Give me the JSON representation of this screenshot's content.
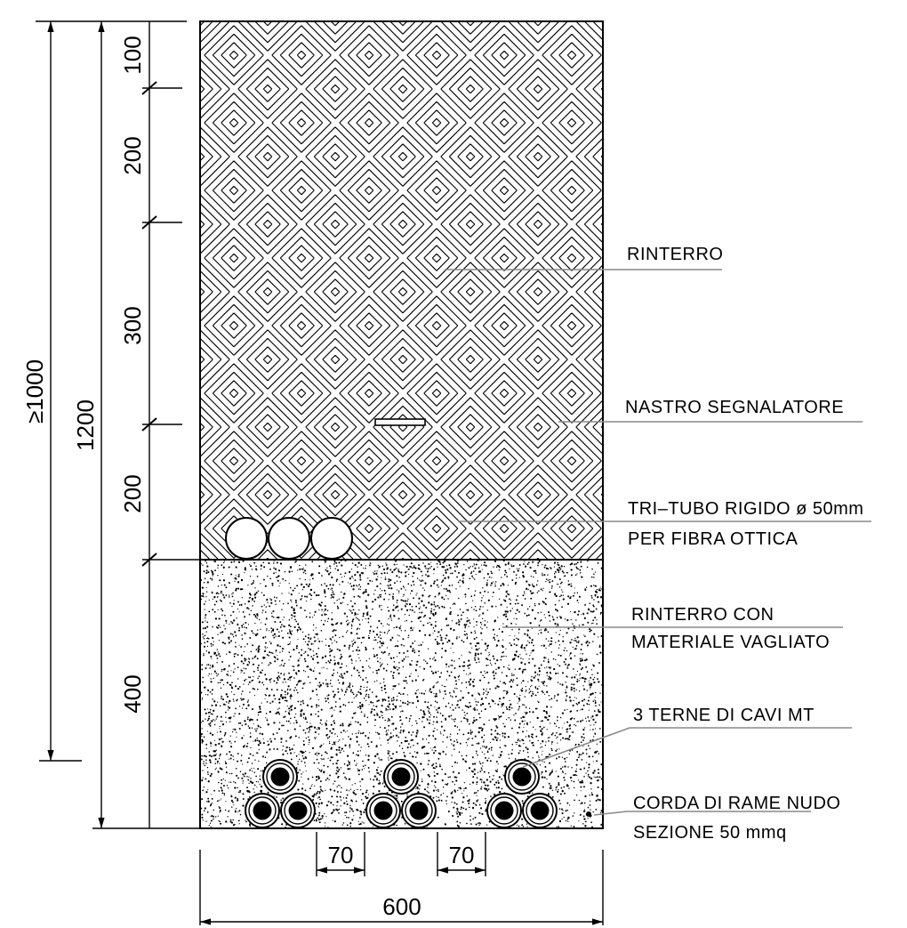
{
  "dimensions": {
    "total_min": "≥1000",
    "total": "1200",
    "segments": [
      "100",
      "200",
      "300",
      "200",
      "400"
    ],
    "spacing_left": "70",
    "spacing_right": "70",
    "width": "600"
  },
  "labels": {
    "rinterro": "RINTERRO",
    "nastro": "NASTRO SEGNALATORE",
    "tritubo_line1": "TRI–TUBO RIGIDO ø 50mm",
    "tritubo_line2": "PER FIBRA OTTICA",
    "vagliato_line1": "RINTERRO CON",
    "vagliato_line2": "MATERIALE VAGLIATO",
    "cavi": "3 TERNE DI CAVI MT",
    "corda_line1": "CORDA DI RAME NUDO",
    "corda_line2": "SEZIONE 50 mmq"
  }
}
